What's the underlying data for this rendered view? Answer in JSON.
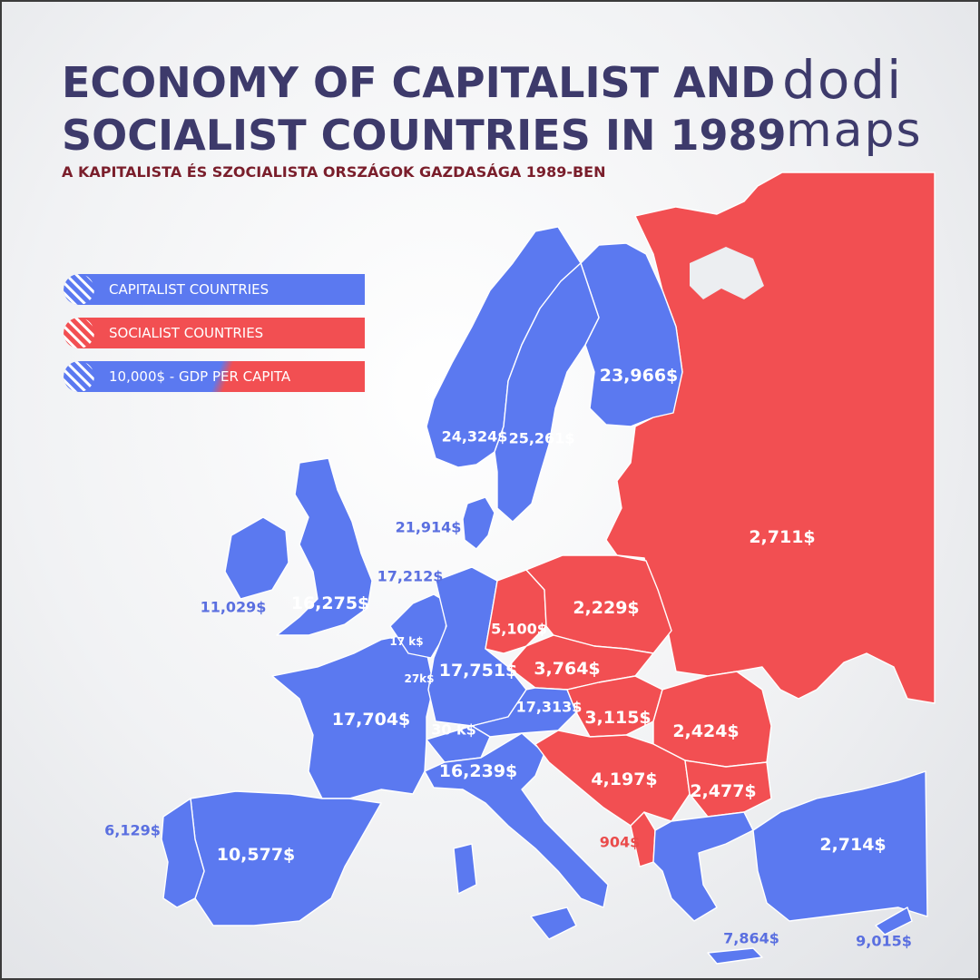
{
  "title": [
    "ECONOMY OF CAPITALIST AND",
    "SOCIALIST COUNTRIES IN 1989"
  ],
  "subtitle": "A KAPITALISTA ÉS SZOCIALISTA ORSZÁGOK GAZDASÁGA 1989-BEN",
  "logo": {
    "line1": "dodi",
    "line2": "maps"
  },
  "colors": {
    "capitalist": "#5b79f0",
    "socialist": "#f24f52",
    "title": "#3d3a6b",
    "subtitle": "#7a1e2b"
  },
  "legend": [
    {
      "label": "CAPITALIST COUNTRIES",
      "icon": "striped-circle-icon"
    },
    {
      "label": "SOCIALIST COUNTRIES",
      "icon": "striped-circle-icon"
    },
    {
      "label": "10,000$ - GDP PER CAPITA",
      "icon": "striped-circle-icon"
    }
  ],
  "countries": [
    {
      "id": "soviet-union",
      "value": "2,711$",
      "bloc": "socialist"
    },
    {
      "id": "finland",
      "value": "23,966$",
      "bloc": "capitalist"
    },
    {
      "id": "sweden",
      "value": "25,261$",
      "bloc": "capitalist"
    },
    {
      "id": "norway",
      "value": "24,324$",
      "bloc": "capitalist"
    },
    {
      "id": "denmark",
      "value": "21,914$",
      "bloc": "capitalist"
    },
    {
      "id": "netherlands",
      "value": "17,212$",
      "bloc": "capitalist"
    },
    {
      "id": "ireland",
      "value": "11,029$",
      "bloc": "capitalist"
    },
    {
      "id": "united-kingdom",
      "value": "16,275$",
      "bloc": "capitalist"
    },
    {
      "id": "belgium",
      "value": "17 k$",
      "bloc": "capitalist"
    },
    {
      "id": "luxembourg",
      "value": "27k$",
      "bloc": "capitalist"
    },
    {
      "id": "west-germany",
      "value": "17,751$",
      "bloc": "capitalist"
    },
    {
      "id": "east-germany",
      "value": "5,100$",
      "bloc": "socialist"
    },
    {
      "id": "poland",
      "value": "2,229$",
      "bloc": "socialist"
    },
    {
      "id": "czechoslovakia",
      "value": "3,764$",
      "bloc": "socialist"
    },
    {
      "id": "austria",
      "value": "17,313$",
      "bloc": "capitalist"
    },
    {
      "id": "hungary",
      "value": "3,115$",
      "bloc": "socialist"
    },
    {
      "id": "romania",
      "value": "2,424$",
      "bloc": "socialist"
    },
    {
      "id": "france",
      "value": "17,704$",
      "bloc": "capitalist"
    },
    {
      "id": "switzerland",
      "value": "30 k$",
      "bloc": "capitalist"
    },
    {
      "id": "italy",
      "value": "16,239$",
      "bloc": "capitalist"
    },
    {
      "id": "yugoslavia",
      "value": "4,197$",
      "bloc": "socialist"
    },
    {
      "id": "bulgaria",
      "value": "2,477$",
      "bloc": "socialist"
    },
    {
      "id": "albania",
      "value": "904$",
      "bloc": "socialist"
    },
    {
      "id": "portugal",
      "value": "6,129$",
      "bloc": "capitalist"
    },
    {
      "id": "spain",
      "value": "10,577$",
      "bloc": "capitalist"
    },
    {
      "id": "turkey",
      "value": "2,714$",
      "bloc": "capitalist"
    },
    {
      "id": "greece",
      "value": "7,864$",
      "bloc": "capitalist"
    },
    {
      "id": "cyprus",
      "value": "9,015$",
      "bloc": "capitalist"
    }
  ]
}
